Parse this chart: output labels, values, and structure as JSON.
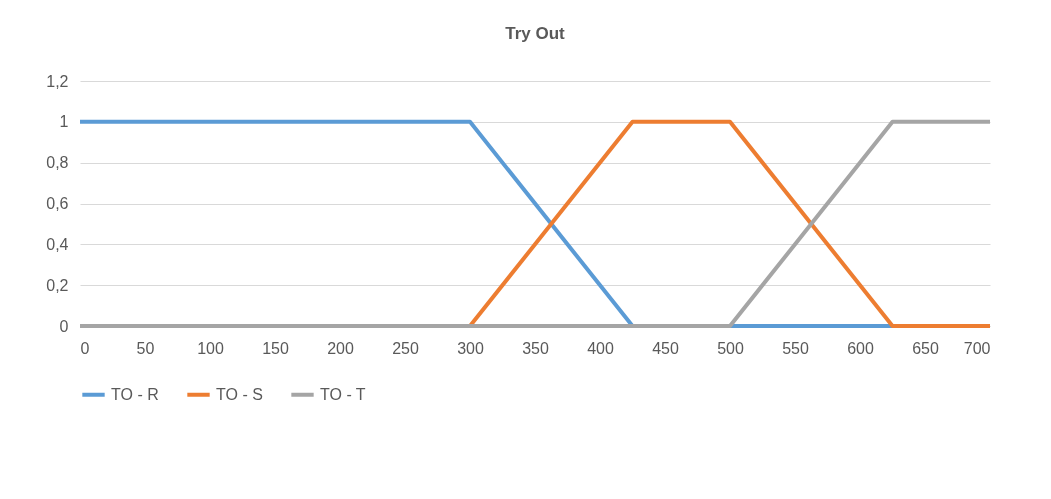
{
  "chart_data": {
    "type": "line",
    "title": "Try Out",
    "x": [
      0,
      300,
      425,
      500,
      625,
      700
    ],
    "series": [
      {
        "name": "TO - R",
        "color": "#5b9bd5",
        "values": [
          1,
          1,
          0,
          0,
          0,
          0
        ]
      },
      {
        "name": "TO - S",
        "color": "#ed7d31",
        "values": [
          0,
          0,
          1,
          1,
          0,
          0
        ]
      },
      {
        "name": "TO - T",
        "color": "#a5a5a5",
        "values": [
          0,
          0,
          0,
          0,
          1,
          1
        ]
      }
    ],
    "xlim": [
      0,
      700
    ],
    "xticks": [
      0,
      50,
      100,
      150,
      200,
      250,
      300,
      350,
      400,
      450,
      500,
      550,
      600,
      650,
      700
    ],
    "ylim": [
      0,
      1.2
    ],
    "yticks": [
      0,
      {
        "value": 0.2,
        "label": "0,2"
      },
      {
        "value": 0.4,
        "label": "0,4"
      },
      {
        "value": 0.6,
        "label": "0,6"
      },
      {
        "value": 0.8,
        "label": "0,8"
      },
      1,
      {
        "value": 1.2,
        "label": "1,2"
      }
    ],
    "grid": "y",
    "legend": "bottom",
    "marker": "none",
    "line_style": "solid"
  }
}
